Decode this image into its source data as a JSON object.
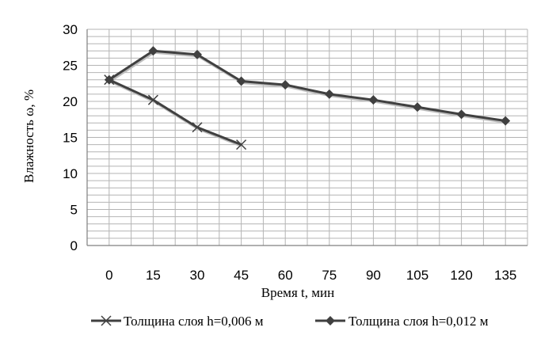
{
  "chart_data": {
    "type": "line",
    "title": "",
    "xlabel": "Время t, мин",
    "ylabel": "Влажность ω, %",
    "categories": [
      "0",
      "15",
      "30",
      "45",
      "60",
      "75",
      "90",
      "105",
      "120",
      "135"
    ],
    "ylim": [
      0,
      30
    ],
    "yticks": [
      "0",
      "5",
      "10",
      "15",
      "20",
      "25",
      "30"
    ],
    "grid": true,
    "legend_position": "bottom",
    "series": [
      {
        "name": "Толщина слоя h=0,006 м",
        "marker": "x",
        "color": "#404040",
        "values": [
          23,
          20.2,
          16.4,
          14.0,
          null,
          null,
          null,
          null,
          null,
          null
        ]
      },
      {
        "name": "Толщина слоя h=0,012 м",
        "marker": "diamond",
        "color": "#404040",
        "values": [
          23,
          27.0,
          26.5,
          22.8,
          22.3,
          21.0,
          20.2,
          19.2,
          18.2,
          17.3
        ]
      }
    ]
  }
}
